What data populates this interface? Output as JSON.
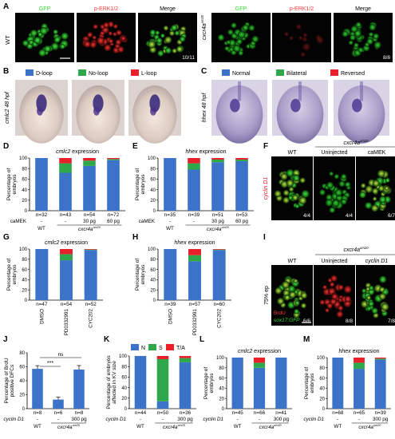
{
  "panels": {
    "A": {
      "letter": "A",
      "row_label": "WT",
      "images": [
        {
          "label": "GFP",
          "color": "#33dd33"
        },
        {
          "label": "p-ERK1/2",
          "color": "#ff3333"
        },
        {
          "label": "Merge",
          "color": "#ffffff",
          "corner": "10/11"
        }
      ],
      "mut_label": "cxcr4a",
      "mut_sup": "um20",
      "mut_images": [
        {
          "label": "GFP",
          "color": "#33dd33"
        },
        {
          "label": "p-ERK1/2",
          "color": "#ff3333"
        },
        {
          "label": "Merge",
          "color": "#ffffff",
          "corner": "8/8"
        }
      ]
    },
    "B": {
      "letter": "B",
      "side_label": "cmlc2 48 hpf",
      "legend": [
        {
          "label": "D-loop",
          "color": "#3a73c7"
        },
        {
          "label": "No-loop",
          "color": "#2ea84a"
        },
        {
          "label": "L-loop",
          "color": "#e8202a"
        }
      ]
    },
    "C": {
      "letter": "C",
      "side_label": "hhex 48 hpf",
      "legend": [
        {
          "label": "Normal",
          "color": "#3a73c7"
        },
        {
          "label": "Bilateral",
          "color": "#2ea84a"
        },
        {
          "label": "Reversed",
          "color": "#e8202a"
        }
      ]
    },
    "D": {
      "letter": "D",
      "title": "cmlc2 expression",
      "ylabel": "Percentage of embryos",
      "ns": [
        "n=32",
        "n=43",
        "n=54",
        "n=72"
      ],
      "row1_label": "caMEK",
      "row1": [
        "-",
        "-",
        "30 pg",
        "60 pg"
      ],
      "group_wt": "WT",
      "group_mut": "cxcr4a",
      "group_sup": "um20"
    },
    "E": {
      "letter": "E",
      "title": "hhex expression",
      "ylabel": "Percentage of embryos",
      "ns": [
        "n=35",
        "n=39",
        "n=51",
        "n=53"
      ],
      "row1_label": "caMEK",
      "row1": [
        "-",
        "-",
        "30 pg",
        "60 pg"
      ],
      "group_wt": "WT",
      "group_mut": "cxcr4a",
      "group_sup": "um20"
    },
    "F": {
      "letter": "F",
      "side_label": "cyclin D1",
      "wt": "WT",
      "mut": "cxcr4a",
      "mut_sup": "um20",
      "cols": [
        "Uninjected",
        "caMEK"
      ],
      "corners": [
        "4/4",
        "4/4",
        "6/7"
      ]
    },
    "G": {
      "letter": "G",
      "title": "cmlc2 expression",
      "ylabel": "Percentage of embryos",
      "ns": [
        "n=47",
        "n=54",
        "n=52"
      ],
      "xticks": [
        "DMSO",
        "PD0332991",
        "CYC202"
      ]
    },
    "H": {
      "letter": "H",
      "title": "hhex expression",
      "ylabel": "Percentage of embryos",
      "ns": [
        "n=39",
        "n=57",
        "n=60"
      ],
      "xticks": [
        "DMSO",
        "PD0332991",
        "CYC202"
      ]
    },
    "I": {
      "letter": "I",
      "side_label": "75% ep",
      "wt": "WT",
      "mut": "cxcr4a",
      "mut_sup": "um20",
      "cols": [
        "Uninjected",
        "cyclin D1"
      ],
      "corners": [
        "6/6",
        "8/8",
        "7/8"
      ],
      "stain1": "BrdU",
      "stain2": "sox17:GFP"
    },
    "J": {
      "letter": "J",
      "ylabel": "Percentage of BrdU positive DFCs",
      "sig": "***",
      "ns_label": "ns",
      "ns": [
        "n=8",
        "n=6",
        "n=8"
      ],
      "row1_label": "cyclin D1",
      "row1": [
        "-",
        "-",
        "300 pg"
      ],
      "group_wt": "WT",
      "group_mut": "cxcr4a",
      "group_sup": "um20"
    },
    "K": {
      "letter": "K",
      "ylabel": "Percentage of embryos affected in KV size",
      "legend": [
        {
          "label": "N",
          "color": "#3a73c7"
        },
        {
          "label": "S",
          "color": "#2ea84a"
        },
        {
          "label": "T/A",
          "color": "#e8202a"
        }
      ],
      "ns": [
        "n=44",
        "n=50",
        "n=36"
      ],
      "row1_label": "cyclin D1",
      "row1": [
        "-",
        "-",
        "300 pg"
      ],
      "group_wt": "WT",
      "group_mut": "cxcr4a",
      "group_sup": "um20"
    },
    "L": {
      "letter": "L",
      "title": "cmlc2 expression",
      "ylabel": "Percentage of embryos",
      "ns": [
        "n=45",
        "n=66",
        "n=41"
      ],
      "row1_label": "cyclin D1",
      "row1": [
        "-",
        "-",
        "300 pg"
      ],
      "group_wt": "WT",
      "group_mut": "cxcr4a",
      "group_sup": "um20"
    },
    "M": {
      "letter": "M",
      "title": "hhex expression",
      "ylabel": "Percentage of embryos",
      "ns": [
        "n=68",
        "n=65",
        "n=39"
      ],
      "row1_label": "cyclin D1",
      "row1": [
        "-",
        "-",
        "300 pg"
      ],
      "group_wt": "WT",
      "group_mut": "cxcr4a",
      "group_sup": "um20"
    }
  },
  "colors": {
    "blue": "#3a73c7",
    "green": "#2ea84a",
    "red": "#e8202a"
  },
  "chart_data": [
    {
      "panel": "D",
      "type": "bar",
      "title": "cmlc2 expression",
      "ylabel": "Percentage of embryos",
      "ylim": [
        0,
        100
      ],
      "categories": [
        "WT",
        "cxcr4a -",
        "cxcr4a 30 pg",
        "cxcr4a 60 pg"
      ],
      "series": [
        {
          "name": "D-loop",
          "values": [
            100,
            72,
            85,
            96
          ]
        },
        {
          "name": "No-loop",
          "values": [
            0,
            18,
            10,
            2
          ]
        },
        {
          "name": "L-loop",
          "values": [
            0,
            10,
            5,
            2
          ]
        }
      ]
    },
    {
      "panel": "E",
      "type": "bar",
      "title": "hhex expression",
      "ylabel": "Percentage of embryos",
      "ylim": [
        0,
        100
      ],
      "categories": [
        "WT",
        "cxcr4a -",
        "cxcr4a 30 pg",
        "cxcr4a 60 pg"
      ],
      "series": [
        {
          "name": "Normal",
          "values": [
            100,
            78,
            92,
            94
          ]
        },
        {
          "name": "Bilateral",
          "values": [
            0,
            12,
            5,
            3
          ]
        },
        {
          "name": "Reversed",
          "values": [
            0,
            10,
            3,
            3
          ]
        }
      ]
    },
    {
      "panel": "G",
      "type": "bar",
      "title": "cmlc2 expression",
      "ylabel": "Percentage of embryos",
      "ylim": [
        0,
        100
      ],
      "categories": [
        "DMSO",
        "PD0332991",
        "CYC202"
      ],
      "series": [
        {
          "name": "D-loop",
          "values": [
            100,
            78,
            98
          ]
        },
        {
          "name": "No-loop",
          "values": [
            0,
            12,
            1
          ]
        },
        {
          "name": "L-loop",
          "values": [
            0,
            10,
            1
          ]
        }
      ]
    },
    {
      "panel": "H",
      "type": "bar",
      "title": "hhex expression",
      "ylabel": "Percentage of embryos",
      "ylim": [
        0,
        100
      ],
      "categories": [
        "DMSO",
        "PD0332991",
        "CYC202"
      ],
      "series": [
        {
          "name": "Normal",
          "values": [
            100,
            76,
            98
          ]
        },
        {
          "name": "Bilateral",
          "values": [
            0,
            12,
            1
          ]
        },
        {
          "name": "Reversed",
          "values": [
            0,
            12,
            1
          ]
        }
      ]
    },
    {
      "panel": "J",
      "type": "bar",
      "ylabel": "Percentage of BrdU positive DFCs",
      "ylim": [
        0,
        80
      ],
      "categories": [
        "WT",
        "cxcr4a -",
        "cxcr4a 300 pg"
      ],
      "series": [
        {
          "values": [
            57,
            13,
            56
          ]
        }
      ]
    },
    {
      "panel": "K",
      "type": "bar",
      "ylabel": "Percentage of embryos affected in KV size",
      "ylim": [
        0,
        100
      ],
      "categories": [
        "WT",
        "cxcr4a -",
        "cxcr4a 300 pg"
      ],
      "series": [
        {
          "name": "N",
          "values": [
            100,
            14,
            88
          ]
        },
        {
          "name": "S",
          "values": [
            0,
            80,
            8
          ]
        },
        {
          "name": "T/A",
          "values": [
            0,
            6,
            4
          ]
        }
      ]
    },
    {
      "panel": "L",
      "type": "bar",
      "title": "cmlc2 expression",
      "ylabel": "Percentage of embryos",
      "ylim": [
        0,
        100
      ],
      "categories": [
        "WT",
        "cxcr4a -",
        "cxcr4a 300 pg"
      ],
      "series": [
        {
          "name": "D-loop",
          "values": [
            100,
            80,
            100
          ]
        },
        {
          "name": "No-loop",
          "values": [
            0,
            10,
            0
          ]
        },
        {
          "name": "L-loop",
          "values": [
            0,
            10,
            0
          ]
        }
      ]
    },
    {
      "panel": "M",
      "type": "bar",
      "title": "hhex expression",
      "ylabel": "Percentage of embryos",
      "ylim": [
        0,
        100
      ],
      "categories": [
        "WT",
        "cxcr4a -",
        "cxcr4a 300 pg"
      ],
      "series": [
        {
          "name": "Normal",
          "values": [
            100,
            78,
            96
          ]
        },
        {
          "name": "Bilateral",
          "values": [
            0,
            12,
            2
          ]
        },
        {
          "name": "Reversed",
          "values": [
            0,
            10,
            2
          ]
        }
      ]
    }
  ]
}
